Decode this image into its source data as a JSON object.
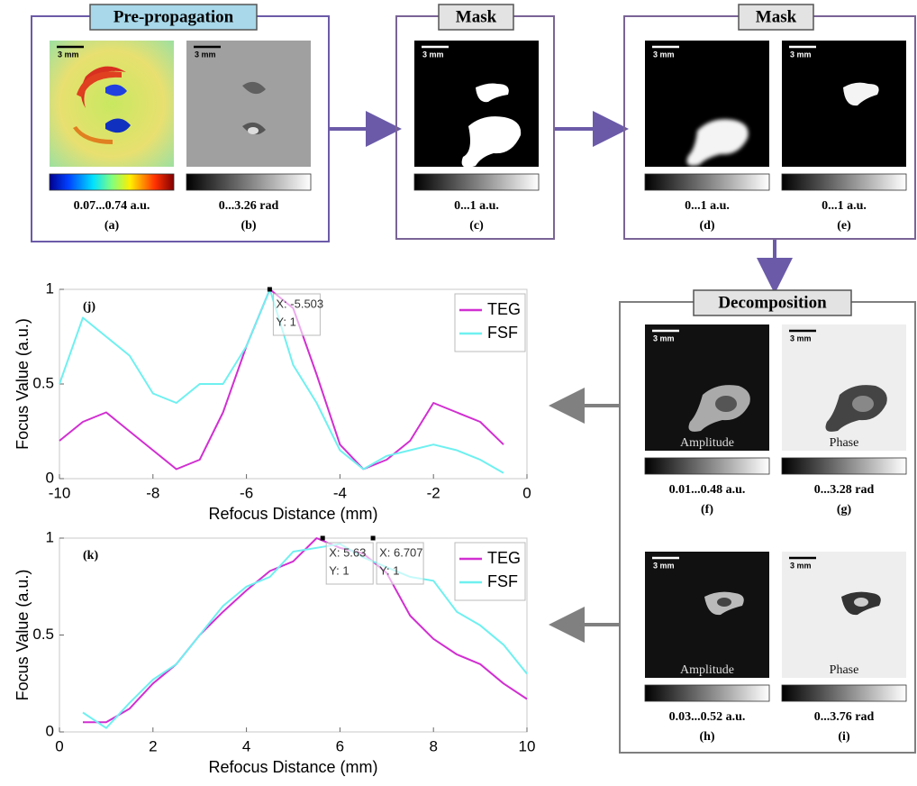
{
  "panels": [
    {
      "title": "Pre-propagation",
      "images": [
        {
          "scale_bar": "3 mm",
          "range": "0.07...0.74 a.u.",
          "label": "(a)"
        },
        {
          "scale_bar": "3 mm",
          "range": "0...3.26 rad",
          "label": "(b)"
        }
      ]
    },
    {
      "title": "Mask",
      "images": [
        {
          "scale_bar": "3 mm",
          "range": "0...1 a.u.",
          "label": "(c)"
        }
      ]
    },
    {
      "title": "Mask",
      "images": [
        {
          "scale_bar": "3 mm",
          "range": "0...1 a.u.",
          "label": "(d)"
        },
        {
          "scale_bar": "3 mm",
          "range": "0...1 a.u.",
          "label": "(e)"
        }
      ]
    },
    {
      "title": "Decomposition",
      "images": [
        {
          "scale_bar": "3 mm",
          "overlay": "Amplitude",
          "range": "0.01...0.48 a.u.",
          "label": "(f)"
        },
        {
          "scale_bar": "3 mm",
          "overlay": "Phase",
          "range": "0...3.28 rad",
          "label": "(g)"
        },
        {
          "scale_bar": "3 mm",
          "overlay": "Amplitude",
          "range": "0.03...0.52  a.u.",
          "label": "(h)"
        },
        {
          "scale_bar": "3 mm",
          "overlay": "Phase",
          "range": "0...3.76  rad",
          "label": "(i)"
        }
      ]
    }
  ],
  "chart_data": [
    {
      "type": "line",
      "panel_label": "(j)",
      "xlabel": "Refocus Distance (mm)",
      "ylabel": "Focus Value (a.u.)",
      "x": [
        -10,
        -9.5,
        -9,
        -8.5,
        -8,
        -7.5,
        -7,
        -6.5,
        -6,
        -5.5,
        -5,
        -4.5,
        -4,
        -3.5,
        -3,
        -2.5,
        -2,
        -1.5,
        -1,
        -0.5
      ],
      "series": [
        {
          "name": "TEG",
          "color": "#d12fd1",
          "values": [
            0.2,
            0.3,
            0.35,
            0.25,
            0.15,
            0.05,
            0.1,
            0.35,
            0.7,
            1,
            0.9,
            0.55,
            0.18,
            0.05,
            0.1,
            0.2,
            0.4,
            0.35,
            0.3,
            0.18
          ]
        },
        {
          "name": "FSF",
          "color": "#6ff0f0",
          "values": [
            0.5,
            0.85,
            0.75,
            0.65,
            0.45,
            0.4,
            0.5,
            0.5,
            0.7,
            1,
            0.6,
            0.4,
            0.15,
            0.05,
            0.12,
            0.15,
            0.18,
            0.15,
            0.1,
            0.03
          ]
        }
      ],
      "xlim": [
        -10,
        0
      ],
      "xticks": [
        -10,
        -8,
        -6,
        -4,
        -2,
        0
      ],
      "ylim": [
        0,
        1
      ],
      "yticks": [
        0,
        0.5,
        1
      ],
      "legend": "upper right",
      "datatips": [
        {
          "x": -5.503,
          "y": 1,
          "labels": [
            "X: -5.503",
            "Y: 1"
          ]
        }
      ]
    },
    {
      "type": "line",
      "panel_label": "(k)",
      "xlabel": "Refocus Distance (mm)",
      "ylabel": "Focus Value (a.u.)",
      "x": [
        0.5,
        1,
        1.5,
        2,
        2.5,
        3,
        3.5,
        4,
        4.5,
        5,
        5.5,
        6,
        6.5,
        7,
        7.5,
        8,
        8.5,
        9,
        9.5,
        10
      ],
      "series": [
        {
          "name": "TEG",
          "color": "#d12fd1",
          "values": [
            0.05,
            0.05,
            0.12,
            0.25,
            0.35,
            0.5,
            0.62,
            0.73,
            0.83,
            0.88,
            1,
            0.95,
            0.92,
            0.82,
            0.6,
            0.48,
            0.4,
            0.35,
            0.25,
            0.17
          ]
        },
        {
          "name": "FSF",
          "color": "#6ff0f0",
          "values": [
            0.1,
            0.02,
            0.15,
            0.27,
            0.35,
            0.5,
            0.65,
            0.75,
            0.8,
            0.93,
            0.95,
            0.97,
            0.9,
            0.85,
            0.8,
            0.78,
            0.62,
            0.55,
            0.45,
            0.3
          ]
        }
      ],
      "xlim": [
        0,
        10
      ],
      "xticks": [
        0,
        2,
        4,
        6,
        8,
        10
      ],
      "ylim": [
        0,
        1
      ],
      "yticks": [
        0,
        0.5,
        1
      ],
      "legend": "upper right",
      "datatips": [
        {
          "x": 5.63,
          "y": 1,
          "labels": [
            "X: 5.63",
            "Y: 1"
          ]
        },
        {
          "x": 6.707,
          "y": 1,
          "labels": [
            "X: 6.707",
            "Y: 1"
          ]
        }
      ]
    }
  ]
}
